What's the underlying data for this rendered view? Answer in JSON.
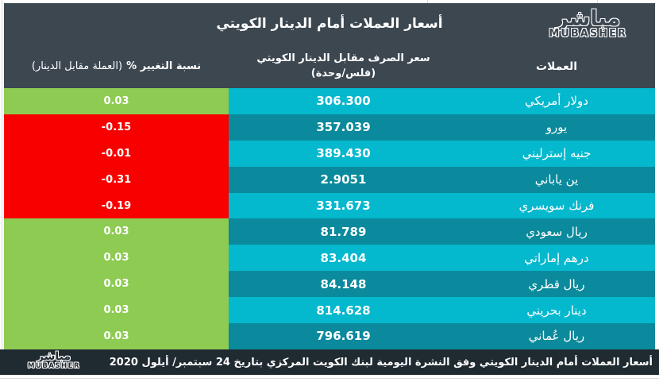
{
  "header": {
    "title": "أسعار العملات أمام الدينار الكويتي"
  },
  "brand": {
    "arabic": "مباشر",
    "latin": "MUBASHER"
  },
  "columns": {
    "currency": "العملات",
    "rate_line1": "سعر الصرف مقابل الدينار الكويتي",
    "rate_line2": "(فلس/وحدة)",
    "change_title": "نسبة التغيير %",
    "change_note": "(العملة مقابل الدينار)"
  },
  "rows": [
    {
      "currency": "دولار أمريكي",
      "rate": "306.300",
      "change": "0.03",
      "direction": "up"
    },
    {
      "currency": "يورو",
      "rate": "357.039",
      "change": "-0.15",
      "direction": "down"
    },
    {
      "currency": "جنيه إسترليني",
      "rate": "389.430",
      "change": "-0.01",
      "direction": "down"
    },
    {
      "currency": "ين ياباني",
      "rate": "2.9051",
      "change": "-0.31",
      "direction": "down"
    },
    {
      "currency": "فرنك سويسري",
      "rate": "331.673",
      "change": "-0.19",
      "direction": "down"
    },
    {
      "currency": "ريال سعودي",
      "rate": "81.789",
      "change": "0.03",
      "direction": "up"
    },
    {
      "currency": "درهم إماراتي",
      "rate": "83.404",
      "change": "0.03",
      "direction": "up"
    },
    {
      "currency": "ريال قطري",
      "rate": "84.148",
      "change": "0.03",
      "direction": "up"
    },
    {
      "currency": "دينار بحريني",
      "rate": "814.628",
      "change": "0.03",
      "direction": "up"
    },
    {
      "currency": "ريال عُماني",
      "rate": "796.619",
      "change": "0.03",
      "direction": "up"
    }
  ],
  "footer": {
    "text": "أسعار العملات أمام الدينار الكويتي وفق النشرة اليومية لبنك الكويت المركزي بتاريخ 24 سبتمبر/ أيلول 2020"
  },
  "colors": {
    "slate": "#3C4750",
    "cyan": "#04B8CE",
    "teal": "#0A8A9C",
    "green": "#8DCB52",
    "red": "#F80000",
    "footer_bg": "#202A31",
    "text": "#FFFFFF"
  },
  "chart_data": {
    "type": "table",
    "title": "أسعار العملات أمام الدينار الكويتي",
    "columns": [
      "العملات",
      "سعر الصرف مقابل الدينار الكويتي (فلس/وحدة)",
      "نسبة التغيير % (العملة مقابل الدينار)"
    ],
    "rows": [
      [
        "دولار أمريكي",
        306.3,
        0.03
      ],
      [
        "يورو",
        357.039,
        -0.15
      ],
      [
        "جنيه إسترليني",
        389.43,
        -0.01
      ],
      [
        "ين ياباني",
        2.9051,
        -0.31
      ],
      [
        "فرنك سويسري",
        331.673,
        -0.19
      ],
      [
        "ريال سعودي",
        81.789,
        0.03
      ],
      [
        "درهم إماراتي",
        83.404,
        0.03
      ],
      [
        "ريال قطري",
        84.148,
        0.03
      ],
      [
        "دينار بحريني",
        814.628,
        0.03
      ],
      [
        "ريال عُماني",
        796.619,
        0.03
      ]
    ],
    "positive_color": "#8DCB52",
    "negative_color": "#F80000",
    "source_note": "أسعار العملات أمام الدينار الكويتي وفق النشرة اليومية لبنك الكويت المركزي بتاريخ 24 سبتمبر/ أيلول 2020"
  }
}
